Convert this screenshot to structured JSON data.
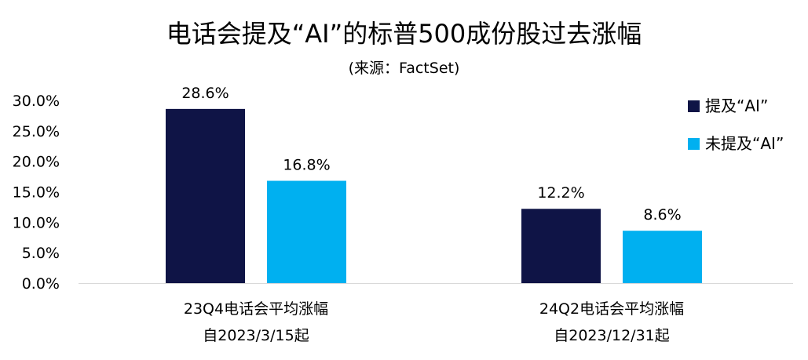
{
  "chart_data": {
    "type": "bar",
    "title": "电话会提及“AI”的标普500成份股过去涨幅",
    "subtitle": "(来源：FactSet)",
    "categories": [
      [
        "23Q4电话会平均涨幅",
        "自2023/3/15起"
      ],
      [
        "24Q2电话会平均涨幅",
        "自2023/12/31起"
      ]
    ],
    "series": [
      {
        "name": "提及“AI”",
        "color": "#0f1446",
        "values": [
          28.6,
          12.2
        ]
      },
      {
        "name": "未提及“AI”",
        "color": "#00b0f0",
        "values": [
          16.8,
          8.6
        ]
      }
    ],
    "data_labels": [
      [
        "28.6%",
        "12.2%"
      ],
      [
        "16.8%",
        "8.6%"
      ]
    ],
    "yticks": [
      "0.0%",
      "5.0%",
      "10.0%",
      "15.0%",
      "20.0%",
      "25.0%",
      "30.0%"
    ],
    "ylim": [
      0,
      30
    ],
    "xlabel": "",
    "ylabel": "",
    "grid": false,
    "legend_position": "top-right"
  }
}
